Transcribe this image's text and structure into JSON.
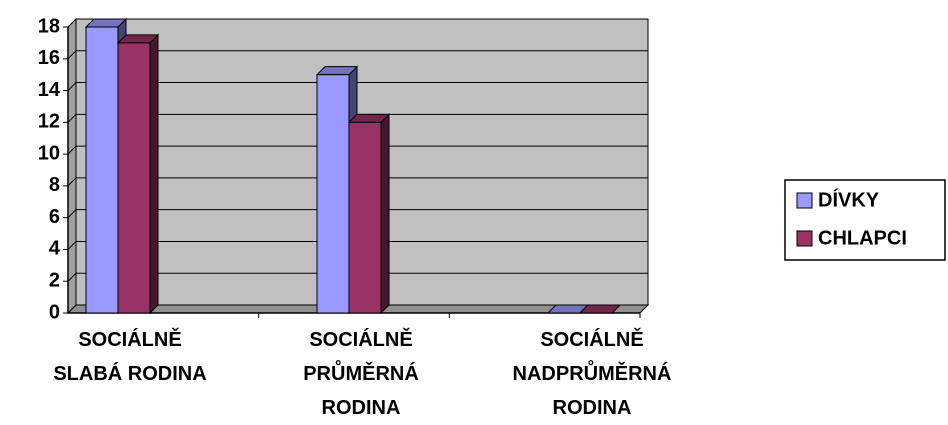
{
  "chart_data": {
    "type": "bar3d",
    "categories": [
      "SOCIÁLNĚ\nSLABÁ RODINA",
      "SOCIÁLNĚ\nPRŮMĚRNÁ\nRODINA",
      "SOCIÁLNĚ\nNADPRŮMĚRNÁ\nRODINA"
    ],
    "series": [
      {
        "name": "DÍVKY",
        "color": "#9999ff",
        "values": [
          18,
          15,
          0
        ]
      },
      {
        "name": "CHLAPCI",
        "color": "#993366",
        "values": [
          17,
          12,
          0
        ]
      }
    ],
    "ylim": [
      0,
      18
    ],
    "yticks": [
      0,
      2,
      4,
      6,
      8,
      10,
      12,
      14,
      16,
      18
    ],
    "grid": true,
    "legend": "right"
  }
}
